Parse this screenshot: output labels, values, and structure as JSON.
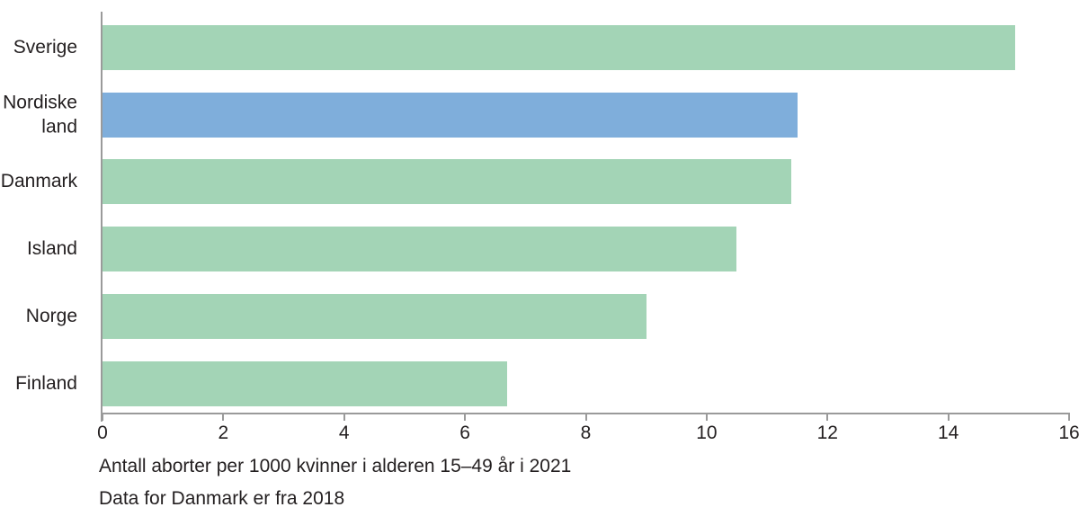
{
  "chart_data": {
    "type": "bar",
    "orientation": "horizontal",
    "categories": [
      "Sverige",
      "Nordiske land",
      "Danmark",
      "Island",
      "Norge",
      "Finland"
    ],
    "values": [
      15.1,
      11.5,
      11.4,
      10.5,
      9,
      6.7
    ],
    "bar_colors": [
      "#a3d4b6",
      "#7faedb",
      "#a3d4b6",
      "#a3d4b6",
      "#a3d4b6",
      "#a3d4b6"
    ],
    "highlighted_category": "Nordiske land",
    "xlim": [
      0,
      16
    ],
    "x_ticks": [
      0,
      2,
      4,
      6,
      8,
      10,
      12,
      14,
      16
    ],
    "grid": false,
    "legend": false,
    "title": "",
    "xlabel": "Antall aborter per 1000 kvinner i alderen 15–49 år i 2021",
    "footnote": "Data for Danmark er fra 2018"
  },
  "style": {
    "background": "#ffffff",
    "axis_color": "#9a9a9a",
    "text_color": "#231f20",
    "bar_green": "#a3d4b6",
    "bar_blue": "#7faedb"
  }
}
